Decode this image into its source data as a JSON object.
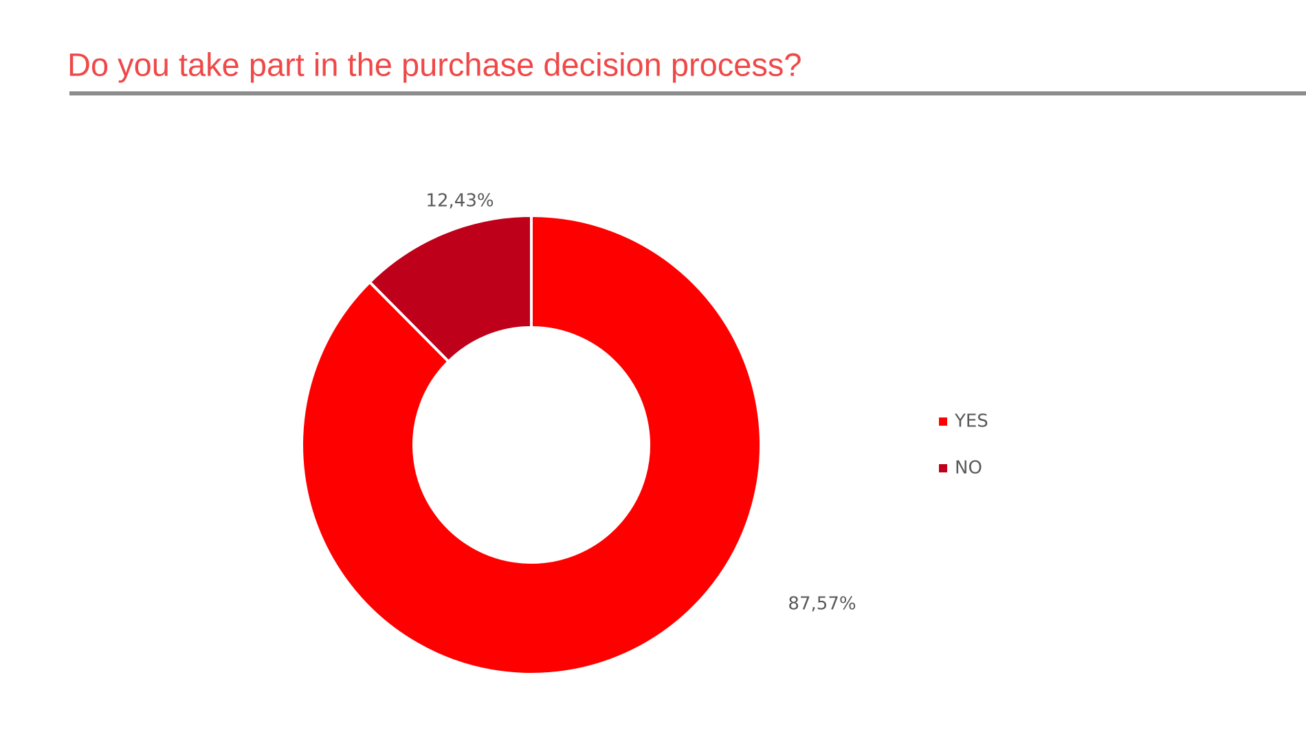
{
  "chart_data": {
    "type": "donut",
    "title": "Do you take part in the purchase decision process?",
    "categories": [
      "YES",
      "NO"
    ],
    "values": [
      87.57,
      12.43
    ],
    "value_labels": [
      "87,57%",
      "12,43%"
    ],
    "colors": [
      "#ff0000",
      "#be001a"
    ],
    "legend": "right"
  }
}
